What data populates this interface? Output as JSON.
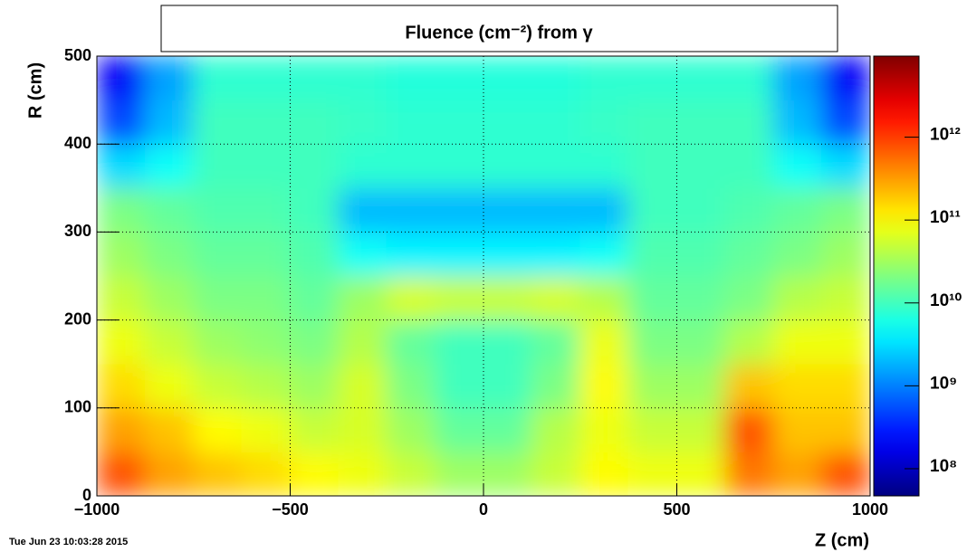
{
  "chart_data": {
    "type": "heatmap",
    "title": "Fluence (cm⁻²) from γ",
    "x_label": "Z (cm)",
    "y_label": "R (cm)",
    "timestamp": "Tue Jun 23 10:03:28 2015",
    "xbins": [
      -1000,
      -875,
      -750,
      -625,
      -500,
      -375,
      -250,
      -125,
      0,
      125,
      250,
      375,
      500,
      625,
      750,
      875,
      1000
    ],
    "ybins": [
      0,
      50,
      100,
      150,
      200,
      250,
      300,
      350,
      400,
      450,
      500
    ],
    "z": [
      [
        800000000000.0,
        300000000000.0,
        200000000000.0,
        150000000000.0,
        100000000000.0,
        80000000000.0,
        50000000000.0,
        30000000000.0,
        30000000000.0,
        50000000000.0,
        100000000000.0,
        80000000000.0,
        80000000000.0,
        500000000000.0,
        300000000000.0,
        800000000000.0
      ],
      [
        300000000000.0,
        200000000000.0,
        100000000000.0,
        80000000000.0,
        50000000000.0,
        60000000000.0,
        30000000000.0,
        15000000000.0,
        15000000000.0,
        40000000000.0,
        80000000000.0,
        50000000000.0,
        50000000000.0,
        800000000000.0,
        200000000000.0,
        200000000000.0
      ],
      [
        150000000000.0,
        80000000000.0,
        50000000000.0,
        40000000000.0,
        30000000000.0,
        60000000000.0,
        20000000000.0,
        10000000000.0,
        10000000000.0,
        20000000000.0,
        100000000000.0,
        30000000000.0,
        30000000000.0,
        200000000000.0,
        150000000000.0,
        150000000000.0
      ],
      [
        80000000000.0,
        50000000000.0,
        30000000000.0,
        25000000000.0,
        20000000000.0,
        40000000000.0,
        15000000000.0,
        10000000000.0,
        10000000000.0,
        15000000000.0,
        80000000000.0,
        20000000000.0,
        20000000000.0,
        40000000000.0,
        80000000000.0,
        80000000000.0
      ],
      [
        50000000000.0,
        30000000000.0,
        20000000000.0,
        20000000000.0,
        15000000000.0,
        30000000000.0,
        60000000000.0,
        50000000000.0,
        50000000000.0,
        60000000000.0,
        40000000000.0,
        15000000000.0,
        15000000000.0,
        20000000000.0,
        40000000000.0,
        50000000000.0
      ],
      [
        30000000000.0,
        20000000000.0,
        15000000000.0,
        15000000000.0,
        12000000000.0,
        5000000000.0,
        4000000000.0,
        4000000000.0,
        4000000000.0,
        4000000000.0,
        5000000000.0,
        12000000000.0,
        12000000000.0,
        15000000000.0,
        20000000000.0,
        30000000000.0
      ],
      [
        20000000000.0,
        15000000000.0,
        12000000000.0,
        12000000000.0,
        10000000000.0,
        2000000000.0,
        2000000000.0,
        2000000000.0,
        2000000000.0,
        2000000000.0,
        2000000000.0,
        10000000000.0,
        10000000000.0,
        12000000000.0,
        15000000000.0,
        20000000000.0
      ],
      [
        3000000000.0,
        5000000000.0,
        10000000000.0,
        10000000000.0,
        10000000000.0,
        8000000000.0,
        8000000000.0,
        8000000000.0,
        8000000000.0,
        8000000000.0,
        8000000000.0,
        10000000000.0,
        10000000000.0,
        10000000000.0,
        5000000000.0,
        3000000000.0
      ],
      [
        500000000.0,
        2000000000.0,
        10000000000.0,
        10000000000.0,
        10000000000.0,
        9000000000.0,
        8000000000.0,
        8000000000.0,
        8000000000.0,
        8000000000.0,
        9000000000.0,
        10000000000.0,
        10000000000.0,
        10000000000.0,
        2000000000.0,
        500000000.0
      ],
      [
        200000000.0,
        1500000000.0,
        8000000000.0,
        8000000000.0,
        8000000000.0,
        8000000000.0,
        7000000000.0,
        7000000000.0,
        7000000000.0,
        7000000000.0,
        8000000000.0,
        8000000000.0,
        8000000000.0,
        8000000000.0,
        1500000000.0,
        200000000.0
      ]
    ],
    "xlim": [
      -1000,
      1000
    ],
    "ylim": [
      0,
      500
    ],
    "xticks": [
      {
        "value": -1000,
        "label": "−1000"
      },
      {
        "value": -500,
        "label": "−500"
      },
      0,
      500,
      1000
    ],
    "yticks": [
      0,
      100,
      200,
      300,
      400,
      500
    ],
    "zlim": [
      47000000.0,
      9500000000000.0
    ],
    "zlog": true,
    "zticks": [
      {
        "value": 100000000.0,
        "label": "10⁸"
      },
      {
        "value": 1000000000.0,
        "label": "10⁹"
      },
      {
        "value": 10000000000.0,
        "label": "10¹⁰"
      },
      {
        "value": 100000000000.0,
        "label": "10¹¹"
      },
      {
        "value": 1000000000000.0,
        "label": "10¹²"
      }
    ],
    "grid": true
  }
}
